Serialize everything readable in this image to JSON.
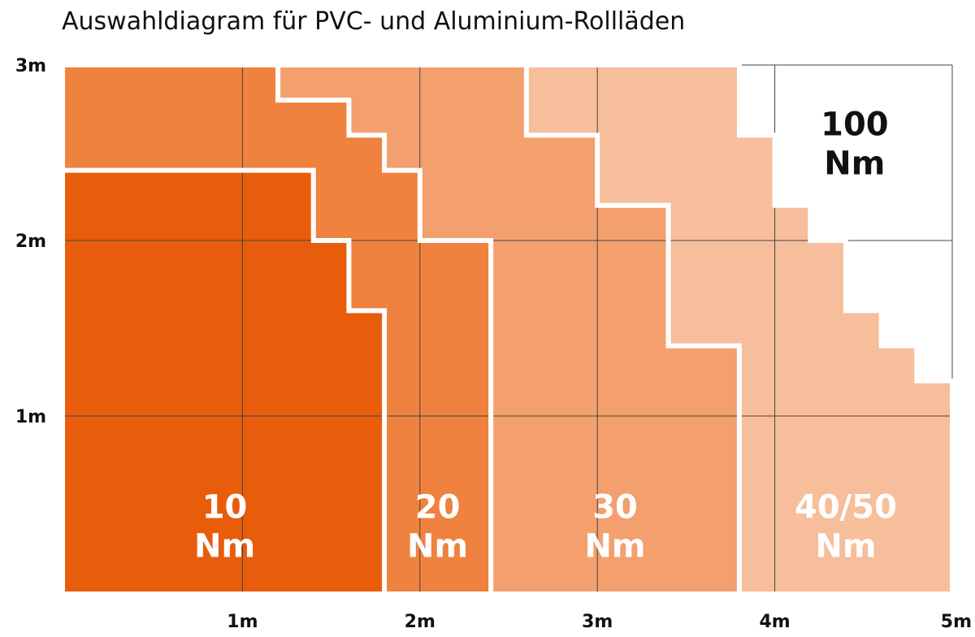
{
  "chart_data": {
    "type": "area",
    "title": "Auswahldiagram für PVC- und Aluminium-Rollläden",
    "xlabel": "",
    "ylabel": "",
    "xlim": [
      0,
      5
    ],
    "ylim": [
      0,
      3
    ],
    "x_ticks": [
      {
        "value": 1,
        "label": "1m"
      },
      {
        "value": 2,
        "label": "2m"
      },
      {
        "value": 3,
        "label": "3m"
      },
      {
        "value": 4,
        "label": "4m"
      },
      {
        "value": 5,
        "label": "5m"
      }
    ],
    "y_ticks": [
      {
        "value": 1,
        "label": "1m"
      },
      {
        "value": 2,
        "label": "2m"
      },
      {
        "value": 3,
        "label": "3m"
      }
    ],
    "grid": true,
    "zones": [
      {
        "line1": "10",
        "line2": "Nm",
        "label_at": [
          0.9,
          0.42
        ],
        "fill": "#e85d0c",
        "text_color": "#ffffff",
        "boundary": [
          [
            0,
            2.4
          ],
          [
            1.4,
            2.4
          ],
          [
            1.4,
            2.0
          ],
          [
            1.6,
            2.0
          ],
          [
            1.6,
            1.6
          ],
          [
            1.8,
            1.6
          ],
          [
            1.8,
            0
          ]
        ]
      },
      {
        "line1": "20",
        "line2": "Nm",
        "label_at": [
          2.1,
          0.42
        ],
        "fill": "#ef823e",
        "text_color": "#ffffff",
        "boundary": [
          [
            0,
            3.0
          ],
          [
            1.2,
            3.0
          ],
          [
            1.2,
            2.8
          ],
          [
            1.6,
            2.8
          ],
          [
            1.6,
            2.6
          ],
          [
            1.8,
            2.6
          ],
          [
            1.8,
            2.4
          ],
          [
            2.0,
            2.4
          ],
          [
            2.0,
            2.0
          ],
          [
            2.4,
            2.0
          ],
          [
            2.4,
            0
          ]
        ]
      },
      {
        "line1": "30",
        "line2": "Nm",
        "label_at": [
          3.1,
          0.42
        ],
        "fill": "#f3a06e",
        "text_color": "#ffffff",
        "boundary": [
          [
            0,
            3.0
          ],
          [
            2.6,
            3.0
          ],
          [
            2.6,
            2.6
          ],
          [
            3.0,
            2.6
          ],
          [
            3.0,
            2.2
          ],
          [
            3.4,
            2.2
          ],
          [
            3.4,
            1.4
          ],
          [
            3.8,
            1.4
          ],
          [
            3.8,
            0
          ]
        ]
      },
      {
        "line1": "40/50",
        "line2": "Nm",
        "label_at": [
          4.4,
          0.42
        ],
        "fill": "#f7be9b",
        "text_color": "#ffffff",
        "boundary": [
          [
            0,
            3.0
          ],
          [
            3.8,
            3.0
          ],
          [
            3.8,
            2.6
          ],
          [
            4.0,
            2.6
          ],
          [
            4.0,
            2.2
          ],
          [
            4.2,
            2.2
          ],
          [
            4.2,
            2.0
          ],
          [
            4.4,
            2.0
          ],
          [
            4.4,
            1.6
          ],
          [
            4.6,
            1.6
          ],
          [
            4.6,
            1.4
          ],
          [
            4.8,
            1.4
          ],
          [
            4.8,
            1.2
          ],
          [
            5.0,
            1.2
          ],
          [
            5.0,
            0
          ]
        ]
      },
      {
        "line1": "100",
        "line2": "Nm",
        "label_at": [
          4.45,
          2.6
        ],
        "fill": "#ffffff",
        "text_color": "#111111",
        "boundary": []
      }
    ],
    "colors": {
      "grid": "#444444",
      "divider": "#ffffff"
    }
  }
}
